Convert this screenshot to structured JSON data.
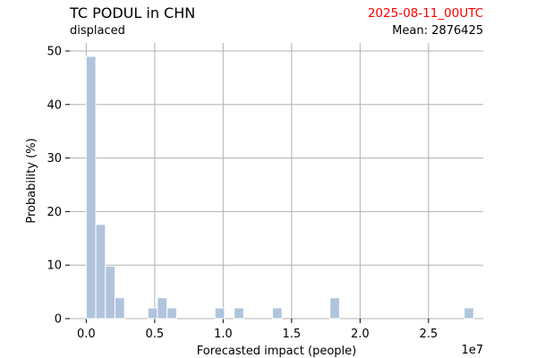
{
  "header": {
    "title": "TC PODUL in CHN",
    "subtitle": "displaced",
    "date": "2025-08-11_00UTC",
    "date_color": "#ff0000",
    "mean_label": "Mean: 2876425"
  },
  "chart_data": {
    "type": "bar",
    "title": "TC PODUL in CHN",
    "xlabel": "Forecasted impact (people)",
    "ylabel": "Probability (%)",
    "x_offset_label": "1e7",
    "xlim": [
      -0.12,
      2.9
    ],
    "ylim": [
      0,
      51.5
    ],
    "xticks": [
      0.0,
      0.5,
      1.0,
      1.5,
      2.0,
      2.5
    ],
    "xtick_labels": [
      "0.0",
      "0.5",
      "1.0",
      "1.5",
      "2.0",
      "2.5"
    ],
    "yticks": [
      0,
      10,
      20,
      30,
      40,
      50
    ],
    "ytick_labels": [
      "0",
      "10",
      "20",
      "30",
      "40",
      "50"
    ],
    "grid": true,
    "bar_color": "#b0c4de",
    "bin_width": 0.07,
    "bars": [
      {
        "x": 0.0,
        "y": 49
      },
      {
        "x": 0.07,
        "y": 17.6
      },
      {
        "x": 0.14,
        "y": 9.8
      },
      {
        "x": 0.21,
        "y": 3.9
      },
      {
        "x": 0.45,
        "y": 2.0
      },
      {
        "x": 0.52,
        "y": 3.9
      },
      {
        "x": 0.59,
        "y": 2.0
      },
      {
        "x": 0.94,
        "y": 2.0
      },
      {
        "x": 1.08,
        "y": 2.0
      },
      {
        "x": 1.36,
        "y": 2.0
      },
      {
        "x": 1.78,
        "y": 3.9
      },
      {
        "x": 2.76,
        "y": 2.0
      }
    ]
  }
}
